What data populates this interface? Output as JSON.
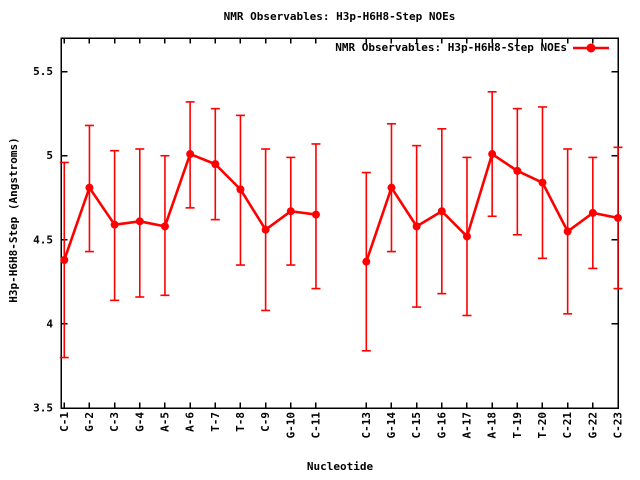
{
  "page": {
    "background": "#ffffff"
  },
  "chart_data": {
    "type": "line",
    "title": "NMR Observables: H3p-H6H8-Step NOEs",
    "legend": {
      "label": "NMR Observables: H3p-H6H8-Step NOEs",
      "position": "top-right-inside",
      "marker": "filled-circle-on-line"
    },
    "xlabel": "Nucleotide",
    "ylabel": "H3p-H6H8-Step (Angstroms)",
    "ylim": [
      3.5,
      5.7
    ],
    "xlim": [
      0.87,
      23
    ],
    "yticks": [
      3.5,
      4,
      4.5,
      5,
      5.5
    ],
    "ytick_labels": [
      "3.5",
      "4",
      "4.5",
      "5",
      "5.5"
    ],
    "grid": false,
    "error_bars": true,
    "series_color": "#ff0000",
    "axis_color": "#000000",
    "segments": [
      [
        0,
        10
      ],
      [
        11,
        21
      ]
    ],
    "points": [
      {
        "label": "C-1",
        "x": 1,
        "y": 4.38,
        "ylow": 3.8,
        "yhigh": 4.96
      },
      {
        "label": "G-2",
        "x": 2,
        "y": 4.81,
        "ylow": 4.43,
        "yhigh": 5.18
      },
      {
        "label": "C-3",
        "x": 3,
        "y": 4.59,
        "ylow": 4.14,
        "yhigh": 5.03
      },
      {
        "label": "G-4",
        "x": 4,
        "y": 4.61,
        "ylow": 4.16,
        "yhigh": 5.04
      },
      {
        "label": "A-5",
        "x": 5,
        "y": 4.58,
        "ylow": 4.17,
        "yhigh": 5.0
      },
      {
        "label": "A-6",
        "x": 6,
        "y": 5.01,
        "ylow": 4.69,
        "yhigh": 5.32
      },
      {
        "label": "T-7",
        "x": 7,
        "y": 4.95,
        "ylow": 4.62,
        "yhigh": 5.28
      },
      {
        "label": "T-8",
        "x": 8,
        "y": 4.8,
        "ylow": 4.35,
        "yhigh": 5.24
      },
      {
        "label": "C-9",
        "x": 9,
        "y": 4.56,
        "ylow": 4.08,
        "yhigh": 5.04
      },
      {
        "label": "G-10",
        "x": 10,
        "y": 4.67,
        "ylow": 4.35,
        "yhigh": 4.99
      },
      {
        "label": "C-11",
        "x": 11,
        "y": 4.65,
        "ylow": 4.21,
        "yhigh": 5.07
      },
      {
        "label": "C-13",
        "x": 13,
        "y": 4.37,
        "ylow": 3.84,
        "yhigh": 4.9
      },
      {
        "label": "G-14",
        "x": 14,
        "y": 4.81,
        "ylow": 4.43,
        "yhigh": 5.19
      },
      {
        "label": "C-15",
        "x": 15,
        "y": 4.58,
        "ylow": 4.1,
        "yhigh": 5.06
      },
      {
        "label": "G-16",
        "x": 16,
        "y": 4.67,
        "ylow": 4.18,
        "yhigh": 5.16
      },
      {
        "label": "A-17",
        "x": 17,
        "y": 4.52,
        "ylow": 4.05,
        "yhigh": 4.99
      },
      {
        "label": "A-18",
        "x": 18,
        "y": 5.01,
        "ylow": 4.64,
        "yhigh": 5.38
      },
      {
        "label": "T-19",
        "x": 19,
        "y": 4.91,
        "ylow": 4.53,
        "yhigh": 5.28
      },
      {
        "label": "T-20",
        "x": 20,
        "y": 4.84,
        "ylow": 4.39,
        "yhigh": 5.29
      },
      {
        "label": "C-21",
        "x": 21,
        "y": 4.55,
        "ylow": 4.06,
        "yhigh": 5.04
      },
      {
        "label": "G-22",
        "x": 22,
        "y": 4.66,
        "ylow": 4.33,
        "yhigh": 4.99
      },
      {
        "label": "C-23",
        "x": 23,
        "y": 4.63,
        "ylow": 4.21,
        "yhigh": 5.05
      }
    ]
  }
}
